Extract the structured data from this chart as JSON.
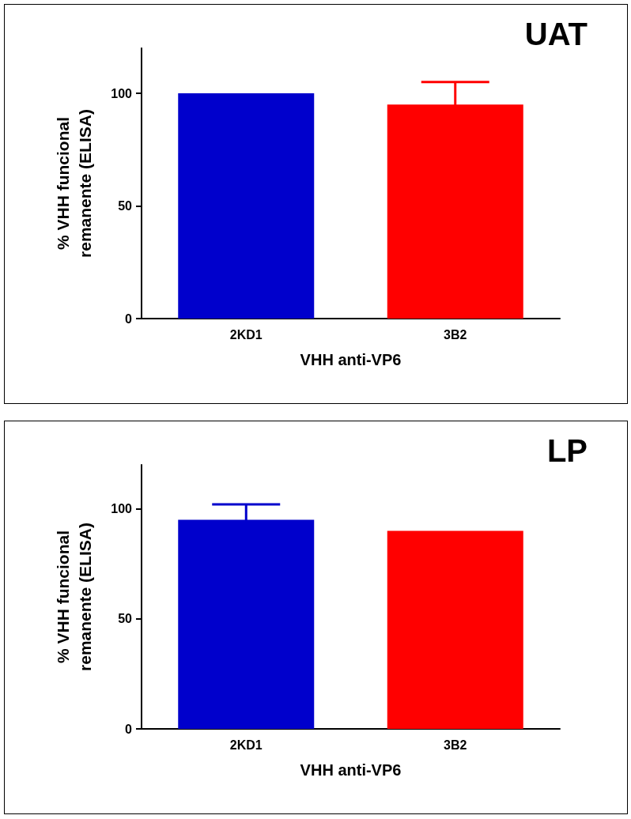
{
  "chart_data": [
    {
      "type": "bar",
      "title": "UAT",
      "xlabel": "VHH anti-VP6",
      "ylabel": "% VHH funcional\nremanente (ELISA)",
      "categories": [
        "2KD1",
        "3B2"
      ],
      "values": [
        100,
        95
      ],
      "colors": [
        "#0000cc",
        "#ff0000"
      ],
      "errors": [
        null,
        10
      ],
      "ylim": [
        0,
        120
      ],
      "yticks": [
        0,
        50,
        100
      ],
      "grid": false
    },
    {
      "type": "bar",
      "title": "LP",
      "xlabel": "VHH anti-VP6",
      "ylabel": "% VHH funcional\nremanente (ELISA)",
      "categories": [
        "2KD1",
        "3B2"
      ],
      "values": [
        95,
        90
      ],
      "colors": [
        "#0000cc",
        "#ff0000"
      ],
      "errors": [
        7,
        null
      ],
      "ylim": [
        0,
        120
      ],
      "yticks": [
        0,
        50,
        100
      ],
      "grid": false
    }
  ]
}
